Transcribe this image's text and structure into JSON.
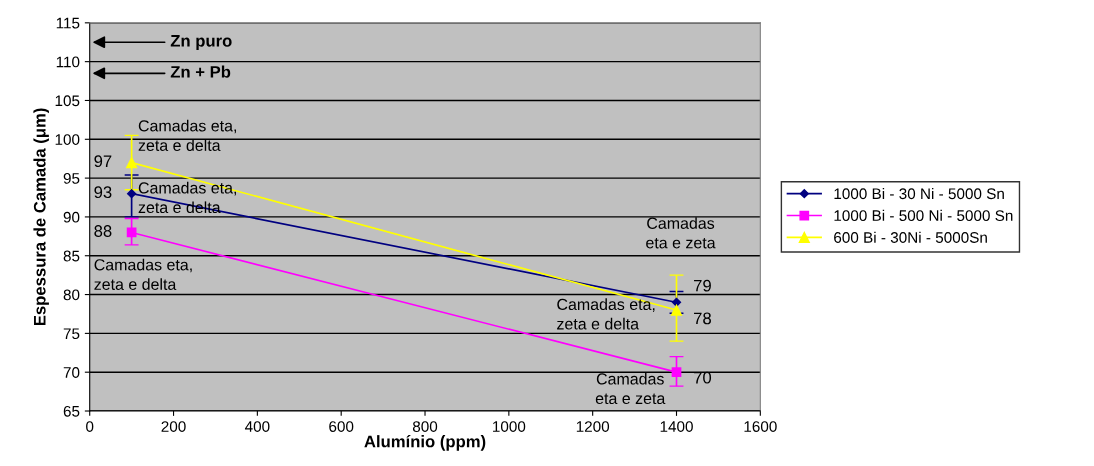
{
  "chart_data": {
    "type": "line",
    "xlabel": "Alumínio (ppm)",
    "ylabel": "Espessura de Camada (μm)",
    "x": [
      100,
      1400
    ],
    "series": [
      {
        "name": "1000 Bi - 30 Ni - 5000 Sn",
        "color": "#000080",
        "marker": "diamond",
        "values": [
          93,
          79
        ],
        "errors": [
          [
            90,
            95.4
          ],
          [
            77.6,
            80.4
          ]
        ]
      },
      {
        "name": "1000 Bi - 500 Ni - 5000 Sn",
        "color": "#ff00ff",
        "marker": "square",
        "values": [
          88,
          70
        ],
        "errors": [
          [
            86.4,
            89.8
          ],
          [
            68.2,
            72
          ]
        ]
      },
      {
        "name": "600 Bi - 30Ni - 5000Sn",
        "color": "#ffff00",
        "marker": "triangle",
        "values": [
          97,
          78
        ],
        "errors": [
          [
            93.5,
            100.5
          ],
          [
            74,
            82.5
          ]
        ]
      }
    ],
    "xlim": [
      0,
      1600
    ],
    "xticks": [
      0,
      200,
      400,
      600,
      800,
      1000,
      1200,
      1400,
      1600
    ],
    "ylim": [
      65,
      115
    ],
    "yticks": [
      65,
      70,
      75,
      80,
      85,
      90,
      95,
      100,
      105,
      110,
      115
    ],
    "grid": "y",
    "legend": "right",
    "data_labels": true,
    "annotations": [
      "Zn puro",
      "Zn + Pb",
      "Camadas eta,\nzeta e delta",
      "Camadas eta,\nzeta e delta",
      "Camadas eta,\nzeta e delta",
      "Camadas\neta e zeta",
      "Camadas eta,\nzeta e delta",
      "Camadas\neta e zeta"
    ]
  }
}
